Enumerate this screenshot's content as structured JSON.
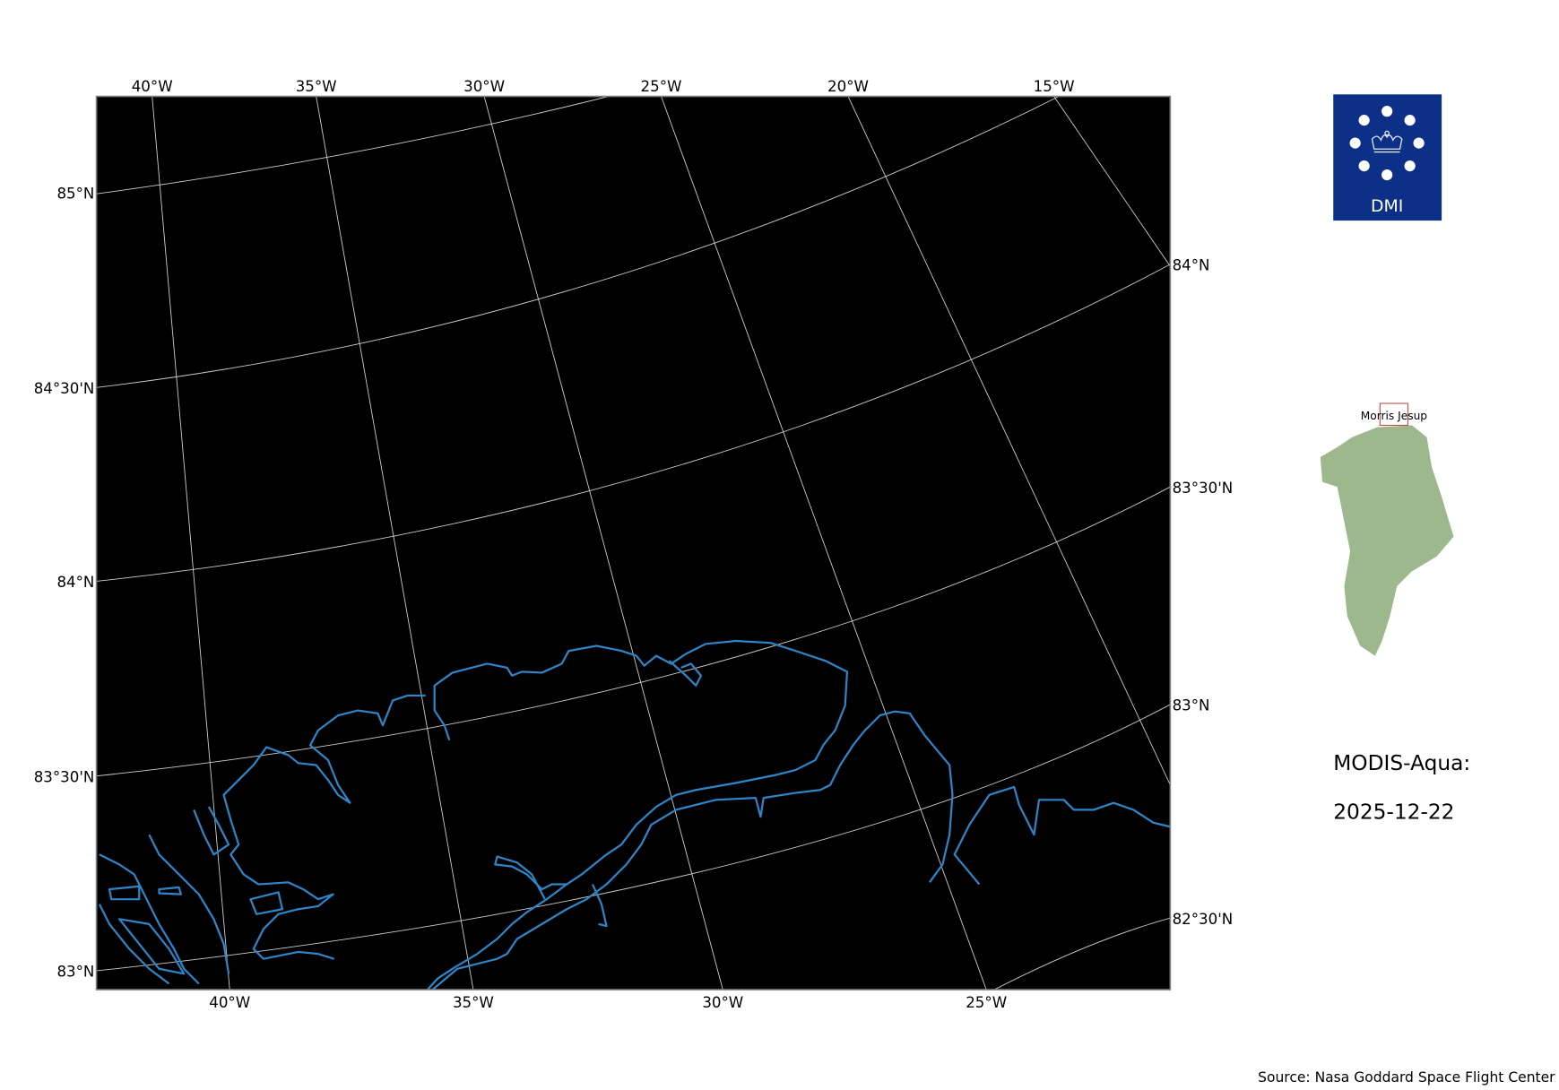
{
  "map": {
    "background_color": "#000000",
    "gridline_color": "#d0d0d0",
    "coastline_color": "#2e86c9",
    "top_lon_labels": [
      "40°W",
      "35°W",
      "30°W",
      "25°W",
      "20°W",
      "15°W"
    ],
    "bottom_lon_labels": [
      "40°W",
      "35°W",
      "30°W",
      "25°W"
    ],
    "left_lat_labels": [
      "85°N",
      "84°30'N",
      "84°N",
      "83°30'N",
      "83°N"
    ],
    "right_lat_labels": [
      "84°N",
      "83°30'N",
      "83°N",
      "82°30'N"
    ]
  },
  "logo": {
    "text": "DMI",
    "color": "#0c2f87",
    "icon": "crown-icon"
  },
  "inset": {
    "label": "Morris Jesup",
    "land_color": "#9cb88c",
    "box_color": "#c0504d"
  },
  "info": {
    "sensor": "MODIS-Aqua:",
    "date": "2025-12-22"
  },
  "source": "Source: Nasa Goddard Space Flight Center"
}
